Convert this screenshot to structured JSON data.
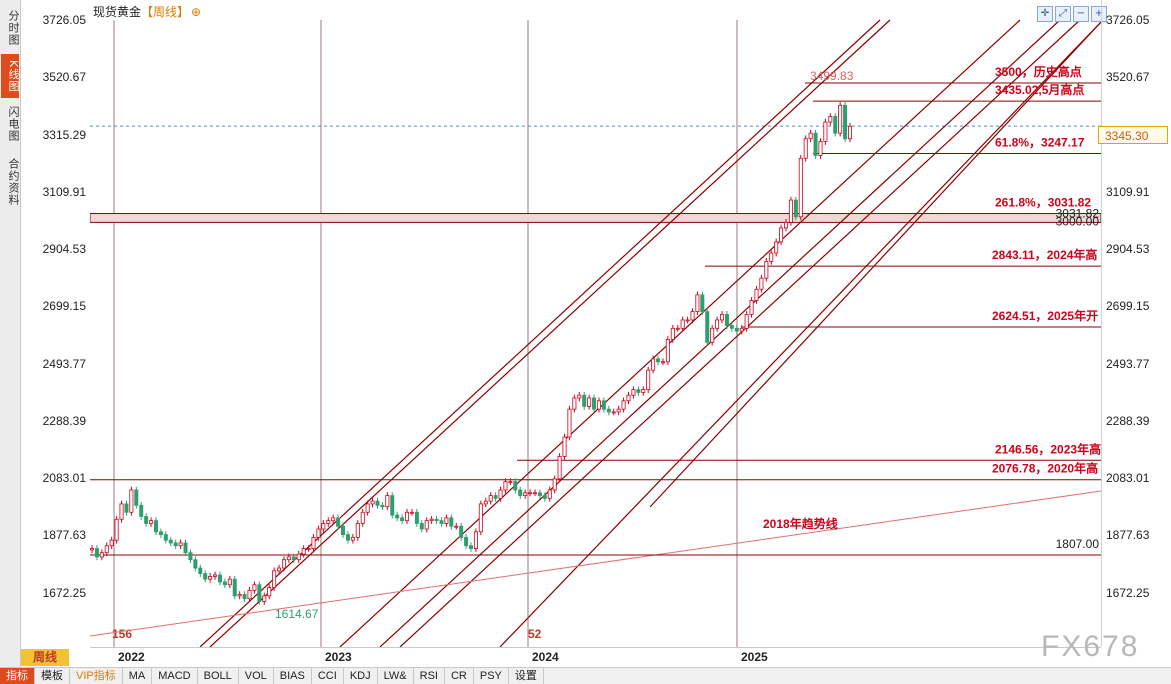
{
  "sidebar": {
    "tabs": [
      {
        "label": "分时图",
        "active": false
      },
      {
        "label": "K线图",
        "active": true
      },
      {
        "label": "闪电图",
        "active": false
      },
      {
        "label": "合约资料",
        "active": false
      }
    ]
  },
  "header": {
    "instrument": "现货黄金",
    "timeframe": "【周线】",
    "zoom_icon": "zoom-in-icon"
  },
  "toolbar_icons": [
    "crosshair-icon",
    "expand-icon",
    "zoom-out-icon",
    "zoom-in-icon"
  ],
  "current_price": "3345.30",
  "period_button": "周线",
  "bottom_tabs": [
    {
      "label": "指标",
      "active": true
    },
    {
      "label": "模板"
    },
    {
      "label": "VIP指标",
      "vip": true
    },
    {
      "label": "MA"
    },
    {
      "label": "MACD"
    },
    {
      "label": "BOLL"
    },
    {
      "label": "VOL"
    },
    {
      "label": "BIAS"
    },
    {
      "label": "CCI"
    },
    {
      "label": "KDJ"
    },
    {
      "label": "LW&"
    },
    {
      "label": "RSI"
    },
    {
      "label": "CR"
    },
    {
      "label": "PSY"
    },
    {
      "label": "设置"
    }
  ],
  "watermark": "FX678",
  "colors": {
    "up": "#d0021b",
    "down": "#2e9e6e",
    "line": "#8b0000",
    "accent": "#e04b1c"
  },
  "chart_data": {
    "type": "candlestick",
    "title": "现货黄金【周线】",
    "y_ticks": [
      "3726.05",
      "3520.67",
      "3315.29",
      "3109.91",
      "2904.53",
      "2699.15",
      "2493.77",
      "2288.39",
      "2083.01",
      "1877.63",
      "1672.25"
    ],
    "ylim": [
      1590,
      3726.05
    ],
    "x_labels": [
      "2022",
      "2023",
      "2024",
      "2025"
    ],
    "counter_labels": [
      "156",
      "52"
    ],
    "last_price": 3345.3,
    "low_label": "1614.67",
    "high_label": "3499.83",
    "horizontal_levels": [
      {
        "price": 3500,
        "label": "3500，历史高点"
      },
      {
        "price": 3435.02,
        "label": "3435.02,5月高点"
      },
      {
        "price": 3247.17,
        "label": "61.8%，3247.17"
      },
      {
        "price": 3031.82,
        "label": "261.8%，3031.82"
      },
      {
        "price": 2843.11,
        "label": "2843.11，2024年高"
      },
      {
        "price": 2624.51,
        "label": "2624.51，2025年开"
      },
      {
        "price": 2146.56,
        "label": "2146.56，2023年高"
      },
      {
        "price": 2076.78,
        "label": "2076.78，2020年高"
      },
      {
        "price": 1807.0,
        "label": "1807.00"
      }
    ],
    "zone": {
      "from": 3000,
      "to": 3031.82,
      "labels": [
        "3031.82",
        "3000.00"
      ]
    },
    "trendline_label": "2018年趋势线",
    "weekly_close_approx": [
      1830,
      1800,
      1815,
      1840,
      1860,
      1935,
      1990,
      1960,
      2040,
      1985,
      1945,
      1920,
      1930,
      1890,
      1880,
      1860,
      1850,
      1840,
      1850,
      1815,
      1790,
      1760,
      1740,
      1720,
      1730,
      1735,
      1710,
      1700,
      1720,
      1660,
      1665,
      1650,
      1680,
      1700,
      1640,
      1660,
      1690,
      1750,
      1760,
      1790,
      1800,
      1790,
      1810,
      1830,
      1830,
      1870,
      1900,
      1920,
      1930,
      1940,
      1910,
      1880,
      1860,
      1870,
      1920,
      1960,
      1990,
      2000,
      1985,
      1980,
      2020,
      1950,
      1940,
      1930,
      1960,
      1960,
      1920,
      1900,
      1930,
      1935,
      1930,
      1920,
      1940,
      1910,
      1910,
      1870,
      1840,
      1830,
      1890,
      1990,
      2000,
      2020,
      2010,
      2040,
      2070,
      2070,
      2040,
      2020,
      2030,
      2030,
      2030,
      2020,
      2010,
      2040,
      2080,
      2160,
      2230,
      2330,
      2370,
      2380,
      2340,
      2370,
      2330,
      2360,
      2330,
      2320,
      2320,
      2330,
      2360,
      2380,
      2400,
      2390,
      2400,
      2470,
      2510,
      2500,
      2500,
      2580,
      2620,
      2620,
      2650,
      2650,
      2680,
      2740,
      2680,
      2570,
      2620,
      2650,
      2670,
      2630,
      2620,
      2610,
      2620,
      2670,
      2720,
      2760,
      2800,
      2860,
      2890,
      2930,
      2980,
      3000,
      3080,
      3020,
      3230,
      3300,
      3320,
      3240,
      3290,
      3360,
      3380,
      3320,
      3420,
      3300,
      3345
    ]
  }
}
